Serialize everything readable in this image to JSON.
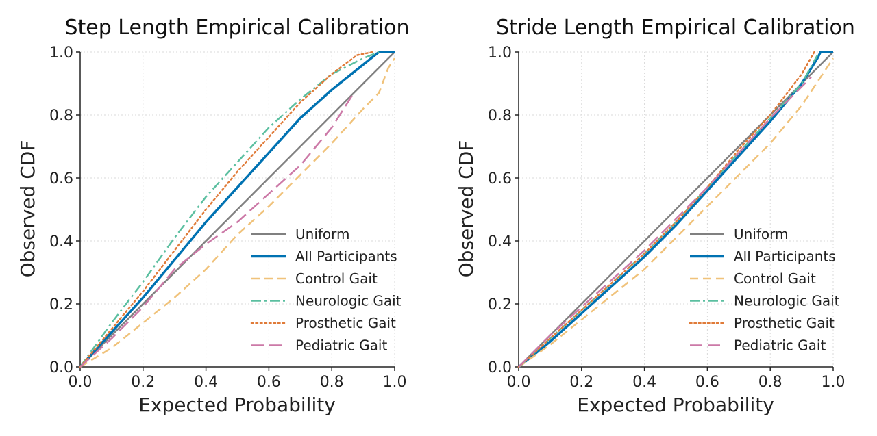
{
  "chart_data": [
    {
      "type": "line",
      "title": "Step Length Empirical Calibration",
      "xlabel": "Expected Probability",
      "ylabel": "Observed CDF",
      "xlim": [
        0,
        1
      ],
      "ylim": [
        0,
        1
      ],
      "xticks": [
        "0.0",
        "0.2",
        "0.4",
        "0.6",
        "0.8",
        "1.0"
      ],
      "yticks": [
        "0.0",
        "0.2",
        "0.4",
        "0.6",
        "0.8",
        "1.0"
      ],
      "grid": true,
      "legend_position": "lower-right",
      "series": [
        {
          "name": "Uniform",
          "color": "#808080",
          "style": "solid",
          "x": [
            0,
            1
          ],
          "y": [
            0,
            1
          ]
        },
        {
          "name": "All Participants",
          "color": "#0072B2",
          "style": "solid-thick",
          "x": [
            0,
            0.1,
            0.2,
            0.3,
            0.4,
            0.5,
            0.6,
            0.7,
            0.8,
            0.9,
            0.95,
            1.0
          ],
          "y": [
            0,
            0.11,
            0.22,
            0.34,
            0.46,
            0.57,
            0.68,
            0.79,
            0.88,
            0.96,
            1.0,
            1.0
          ]
        },
        {
          "name": "Control Gait",
          "color": "#F0C27A",
          "style": "dashed",
          "x": [
            0,
            0.1,
            0.2,
            0.3,
            0.4,
            0.5,
            0.6,
            0.7,
            0.8,
            0.9,
            0.95,
            0.98,
            1.0
          ],
          "y": [
            0,
            0.06,
            0.14,
            0.22,
            0.31,
            0.42,
            0.51,
            0.61,
            0.71,
            0.82,
            0.87,
            0.95,
            0.98
          ]
        },
        {
          "name": "Neurologic Gait",
          "color": "#5BBFA0",
          "style": "dashdot",
          "x": [
            0,
            0.1,
            0.2,
            0.3,
            0.4,
            0.5,
            0.6,
            0.7,
            0.8,
            0.9,
            0.95
          ],
          "y": [
            0,
            0.14,
            0.27,
            0.41,
            0.54,
            0.65,
            0.76,
            0.85,
            0.93,
            0.98,
            1.0
          ]
        },
        {
          "name": "Prosthetic Gait",
          "color": "#E07B39",
          "style": "dotted",
          "x": [
            0,
            0.1,
            0.2,
            0.3,
            0.4,
            0.5,
            0.6,
            0.7,
            0.8,
            0.88,
            0.93
          ],
          "y": [
            0,
            0.12,
            0.24,
            0.37,
            0.5,
            0.62,
            0.73,
            0.84,
            0.93,
            0.99,
            1.0
          ]
        },
        {
          "name": "Pediatric Gait",
          "color": "#CC79A7",
          "style": "longdash",
          "x": [
            0,
            0.1,
            0.2,
            0.3,
            0.4,
            0.5,
            0.6,
            0.7,
            0.8,
            0.87
          ],
          "y": [
            0,
            0.09,
            0.19,
            0.31,
            0.39,
            0.46,
            0.55,
            0.64,
            0.76,
            0.87
          ]
        }
      ]
    },
    {
      "type": "line",
      "title": "Stride Length Empirical Calibration",
      "xlabel": "Expected Probability",
      "ylabel": "Observed CDF",
      "xlim": [
        0,
        1
      ],
      "ylim": [
        0,
        1
      ],
      "xticks": [
        "0.0",
        "0.2",
        "0.4",
        "0.6",
        "0.8",
        "1.0"
      ],
      "yticks": [
        "0.0",
        "0.2",
        "0.4",
        "0.6",
        "0.8",
        "1.0"
      ],
      "grid": true,
      "legend_position": "lower-right",
      "series": [
        {
          "name": "Uniform",
          "color": "#808080",
          "style": "solid",
          "x": [
            0,
            1
          ],
          "y": [
            0,
            1
          ]
        },
        {
          "name": "All Participants",
          "color": "#0072B2",
          "style": "solid-thick",
          "x": [
            0,
            0.1,
            0.2,
            0.3,
            0.4,
            0.5,
            0.6,
            0.7,
            0.8,
            0.9,
            0.95,
            0.96,
            1.0
          ],
          "y": [
            0,
            0.08,
            0.17,
            0.26,
            0.35,
            0.45,
            0.56,
            0.67,
            0.78,
            0.9,
            0.98,
            1.0,
            1.0
          ]
        },
        {
          "name": "Control Gait",
          "color": "#F0C27A",
          "style": "dashed",
          "x": [
            0,
            0.1,
            0.2,
            0.3,
            0.4,
            0.5,
            0.6,
            0.7,
            0.8,
            0.9,
            1.0
          ],
          "y": [
            0,
            0.07,
            0.15,
            0.23,
            0.31,
            0.41,
            0.51,
            0.61,
            0.71,
            0.83,
            0.98
          ]
        },
        {
          "name": "Neurologic Gait",
          "color": "#5BBFA0",
          "style": "dashdot",
          "x": [
            0,
            0.1,
            0.2,
            0.3,
            0.4,
            0.5,
            0.6,
            0.7,
            0.8,
            0.9,
            0.95
          ],
          "y": [
            0,
            0.09,
            0.18,
            0.27,
            0.36,
            0.46,
            0.57,
            0.68,
            0.79,
            0.9,
            0.99
          ]
        },
        {
          "name": "Prosthetic Gait",
          "color": "#E07B39",
          "style": "dotted",
          "x": [
            0,
            0.1,
            0.2,
            0.3,
            0.4,
            0.5,
            0.6,
            0.7,
            0.8,
            0.9,
            0.94
          ],
          "y": [
            0,
            0.09,
            0.18,
            0.27,
            0.36,
            0.46,
            0.57,
            0.69,
            0.8,
            0.93,
            1.0
          ]
        },
        {
          "name": "Pediatric Gait",
          "color": "#CC79A7",
          "style": "longdash",
          "x": [
            0,
            0.1,
            0.2,
            0.3,
            0.4,
            0.5,
            0.6,
            0.7,
            0.8,
            0.93
          ],
          "y": [
            0,
            0.1,
            0.19,
            0.28,
            0.37,
            0.47,
            0.57,
            0.68,
            0.79,
            0.92
          ]
        }
      ]
    }
  ]
}
